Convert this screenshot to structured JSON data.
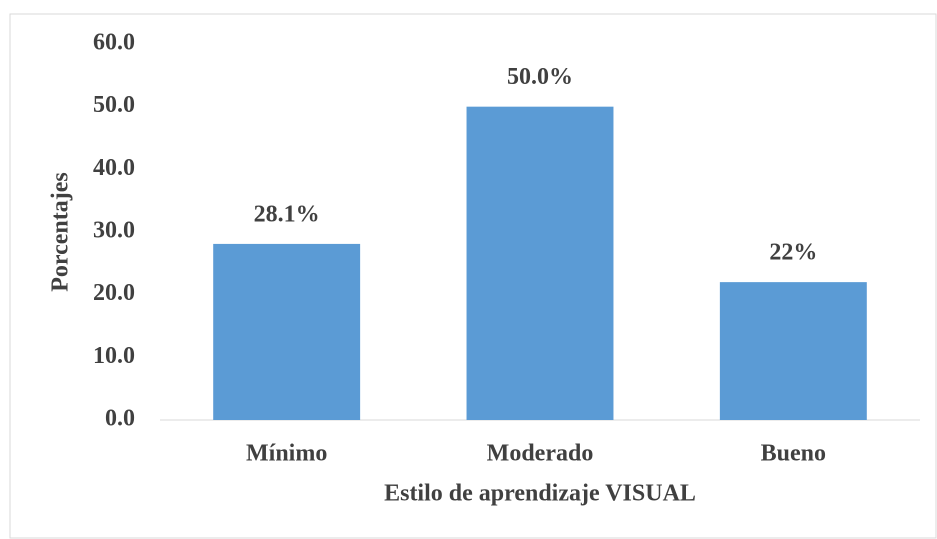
{
  "chart_data": {
    "type": "bar",
    "x_label": "Estilo de aprendizaje VISUAL",
    "y_label": "Porcentajes",
    "categories": [
      "Mínimo",
      "Moderado",
      "Bueno"
    ],
    "values": [
      28.1,
      50.0,
      22
    ],
    "value_labels": [
      "28.1%",
      "50.0%",
      "22%"
    ],
    "color": "#5b9bd5",
    "ylim": [
      0,
      60
    ],
    "yticks": [
      {
        "value": 0,
        "label": "0.0"
      },
      {
        "value": 10,
        "label": "10.0"
      },
      {
        "value": 20,
        "label": "20.0"
      },
      {
        "value": 30,
        "label": "30.0"
      },
      {
        "value": 40,
        "label": "40.0"
      },
      {
        "value": 50,
        "label": "50.0"
      },
      {
        "value": 60,
        "label": "60.0"
      }
    ],
    "grid": false
  }
}
